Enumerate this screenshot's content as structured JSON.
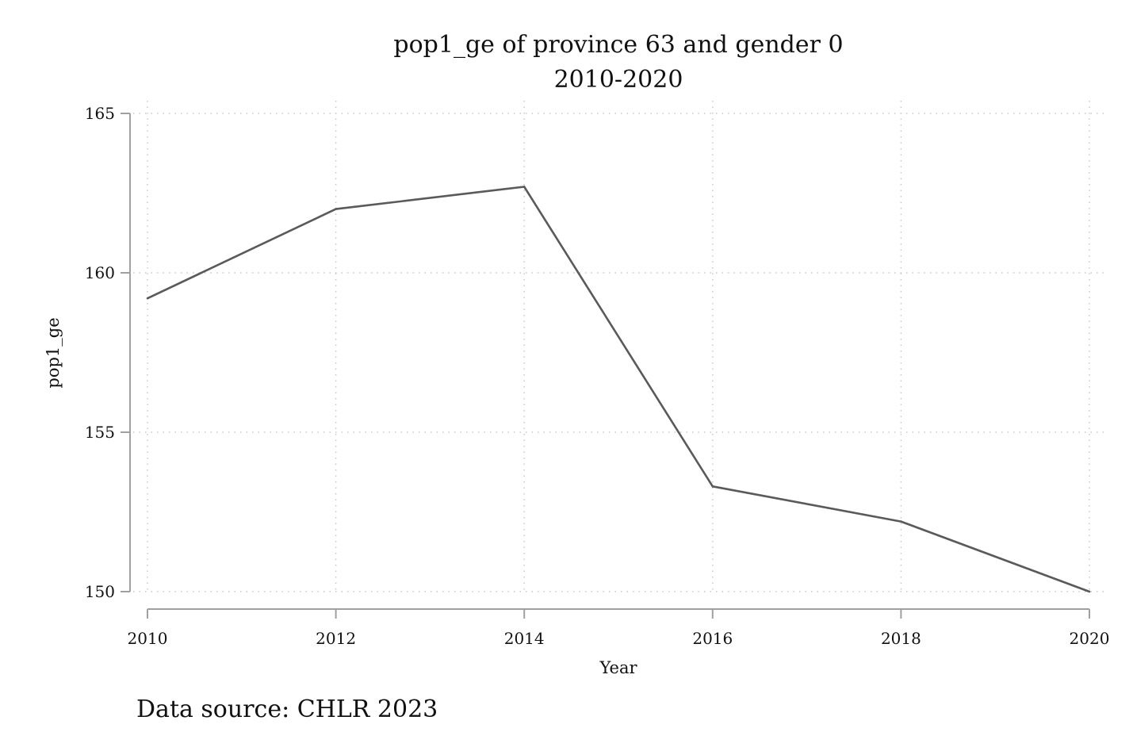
{
  "chart_data": {
    "type": "line",
    "title": "pop1_ge of province 63 and gender 0",
    "subtitle": "2010-2020",
    "xlabel": "Year",
    "ylabel": "pop1_ge",
    "note": "Data source: CHLR 2023",
    "x": [
      2010,
      2012,
      2014,
      2016,
      2018,
      2020
    ],
    "series": [
      {
        "values": [
          159.2,
          162.0,
          162.7,
          153.3,
          152.2,
          150.0
        ]
      }
    ],
    "xlim": [
      2010,
      2020
    ],
    "ylim": [
      150,
      165
    ],
    "xticks": [
      2010,
      2012,
      2014,
      2016,
      2018,
      2020
    ],
    "yticks": [
      150,
      155,
      160,
      165
    ],
    "grid": true,
    "line_color": "#5a5a5a"
  }
}
